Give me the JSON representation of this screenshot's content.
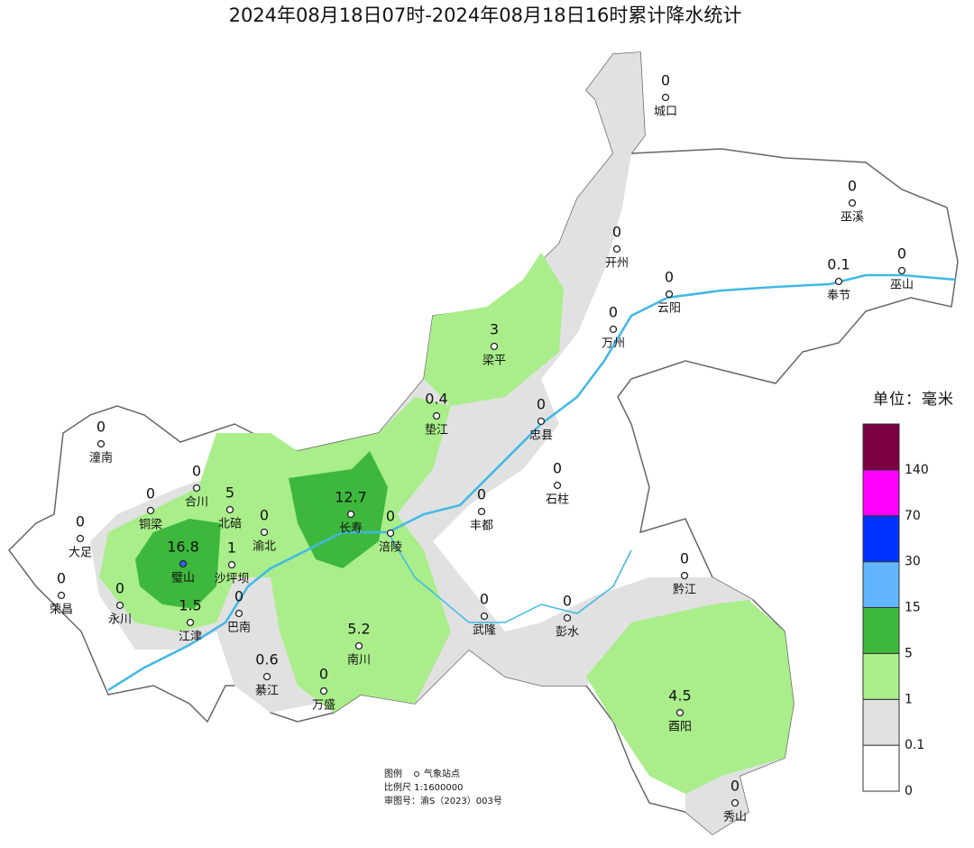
{
  "title": "2024年08月18日07时-2024年08月18日16时累计降水统计",
  "stations": [
    {
      "name": "城口",
      "value": 0
    },
    {
      "name": "巫溪",
      "value": 0
    },
    {
      "name": "开州",
      "value": 0
    },
    {
      "name": "云阳",
      "value": 0
    },
    {
      "name": "奉节",
      "value": 0.1
    },
    {
      "name": "巫山",
      "value": 0
    },
    {
      "name": "万州",
      "value": 0
    },
    {
      "name": "梁平",
      "value": 3
    },
    {
      "name": "垫江",
      "value": 0.4
    },
    {
      "name": "忠县",
      "value": 0
    },
    {
      "name": "石柱",
      "value": 0
    },
    {
      "name": "潼南",
      "value": 0
    },
    {
      "name": "合川",
      "value": 0
    },
    {
      "name": "北碚",
      "value": 5
    },
    {
      "name": "铜梁",
      "value": 0
    },
    {
      "name": "渝北",
      "value": 0
    },
    {
      "name": "长寿",
      "value": 12.7
    },
    {
      "name": "涪陵",
      "value": 0
    },
    {
      "name": "丰都",
      "value": 0
    },
    {
      "name": "大足",
      "value": 0
    },
    {
      "name": "璧山",
      "value": 16.8
    },
    {
      "name": "沙坪坝",
      "value": 1
    },
    {
      "name": "荣昌",
      "value": 0
    },
    {
      "name": "永川",
      "value": 0
    },
    {
      "name": "巴南",
      "value": 0
    },
    {
      "name": "江津",
      "value": 1.5
    },
    {
      "name": "武隆",
      "value": 0
    },
    {
      "name": "彭水",
      "value": 0
    },
    {
      "name": "黔江",
      "value": 0
    },
    {
      "name": "南川",
      "value": 5.2
    },
    {
      "name": "綦江",
      "value": 0.6
    },
    {
      "name": "万盛",
      "value": 0
    },
    {
      "name": "酉阳",
      "value": 4.5
    },
    {
      "name": "秀山",
      "value": 0
    }
  ],
  "legend": {
    "unit": "单位：毫米",
    "levels": [
      {
        "value": 0,
        "color": "#ffffff"
      },
      {
        "value": 0.1,
        "color": "#e1e1e1"
      },
      {
        "value": 1,
        "color": "#a9ee8a"
      },
      {
        "value": 5,
        "color": "#3db83d"
      },
      {
        "value": 15,
        "color": "#62b6ff"
      },
      {
        "value": 30,
        "color": "#0033ff"
      },
      {
        "value": 70,
        "color": "#ff00ff"
      },
      {
        "value": 140,
        "color": "#7a0042"
      }
    ]
  },
  "note": {
    "legend_label": "图例",
    "station_label": "气象站点",
    "scale": "比例尺   1:1600000",
    "approval": "审图号：渝S（2023）003号"
  }
}
